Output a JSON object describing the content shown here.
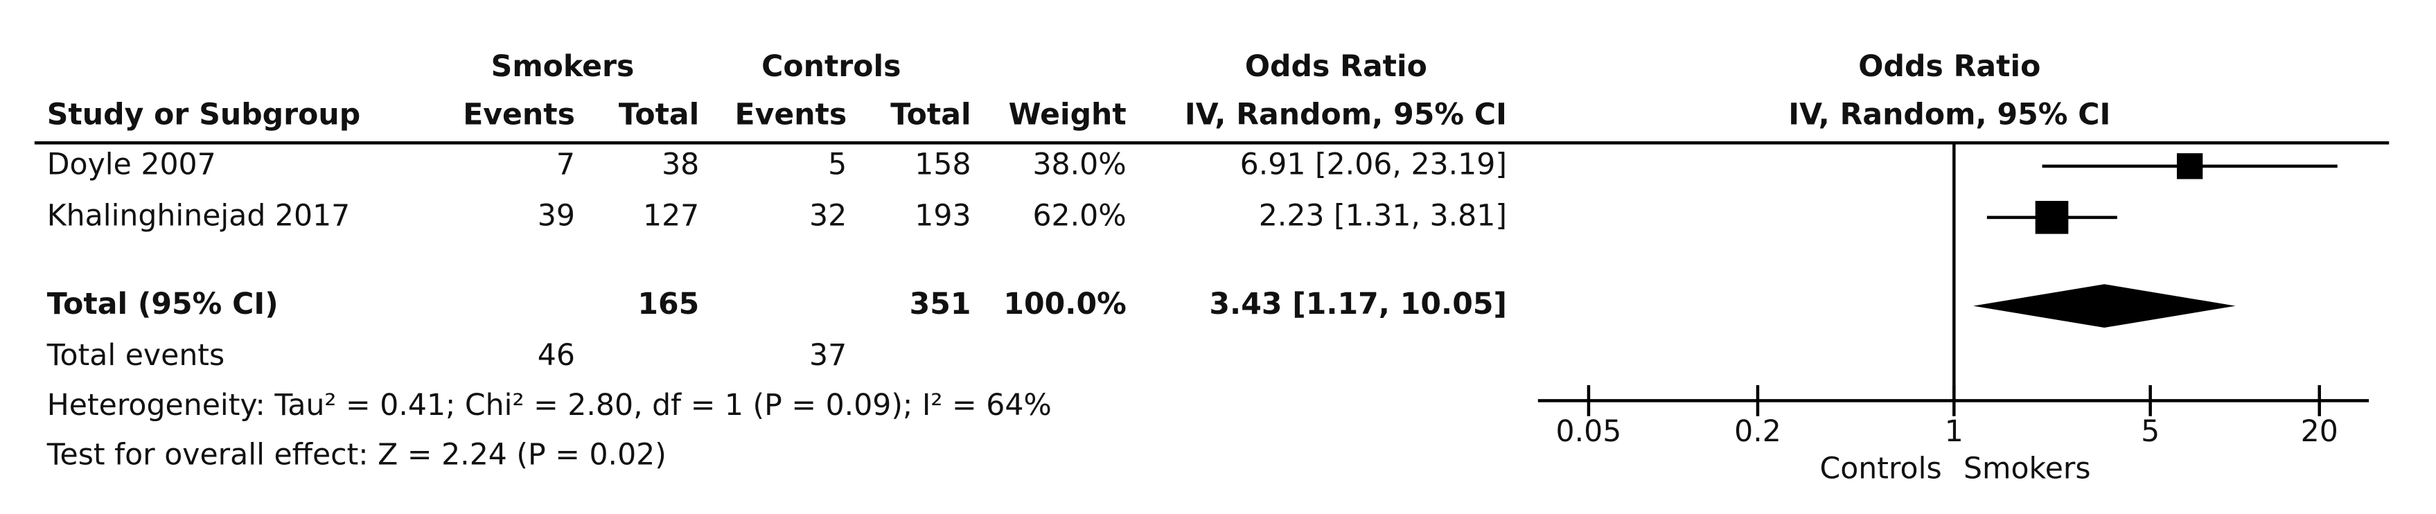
{
  "chart_data": {
    "type": "forest",
    "headers": {
      "group_smokers": "Smokers",
      "group_controls": "Controls",
      "group_or": "Odds Ratio",
      "study": "Study or Subgroup",
      "events_smokers": "Events",
      "total_smokers": "Total",
      "events_controls": "Events",
      "total_controls": "Total",
      "weight": "Weight",
      "method": "IV, Random, 95% CI",
      "plot_title": "Odds Ratio",
      "plot_method": "IV, Random, 95% CI"
    },
    "studies": [
      {
        "name": "Doyle 2007",
        "smokers_events": 7,
        "smokers_total": 38,
        "controls_events": 5,
        "controls_total": 158,
        "weight": 38.0,
        "weight_label": "38.0%",
        "or": 6.91,
        "ci_low": 2.06,
        "ci_high": 23.19,
        "ci_label": "6.91 [2.06, 23.19]",
        "color": "#000000"
      },
      {
        "name": "Khalinghinejad 2017",
        "smokers_events": 39,
        "smokers_total": 127,
        "controls_events": 32,
        "controls_total": 193,
        "weight": 62.0,
        "weight_label": "62.0%",
        "or": 2.23,
        "ci_low": 1.31,
        "ci_high": 3.81,
        "ci_label": "2.23 [1.31, 3.81]",
        "color": "#000000"
      }
    ],
    "total": {
      "name": "Total (95% CI)",
      "smokers_total": 165,
      "controls_total": 351,
      "weight": 100.0,
      "weight_label": "100.0%",
      "or": 3.43,
      "ci_low": 1.17,
      "ci_high": 10.05,
      "ci_label": "3.43 [1.17, 10.05]",
      "color": "#000000"
    },
    "total_events": {
      "label": "Total events",
      "smokers": 46,
      "controls": 37
    },
    "heterogeneity": "Heterogeneity: Tau² = 0.41; Chi² = 2.80, df = 1 (P = 0.09); I² = 64%",
    "overall_effect": "Test for overall effect: Z = 2.24 (P = 0.02)",
    "log_scale": true,
    "xlim": [
      0.033,
      30
    ],
    "xticks": [
      0.05,
      0.2,
      1,
      5,
      20
    ],
    "null_value": 1,
    "x_label_left": "Controls",
    "x_label_right": "Smokers"
  }
}
